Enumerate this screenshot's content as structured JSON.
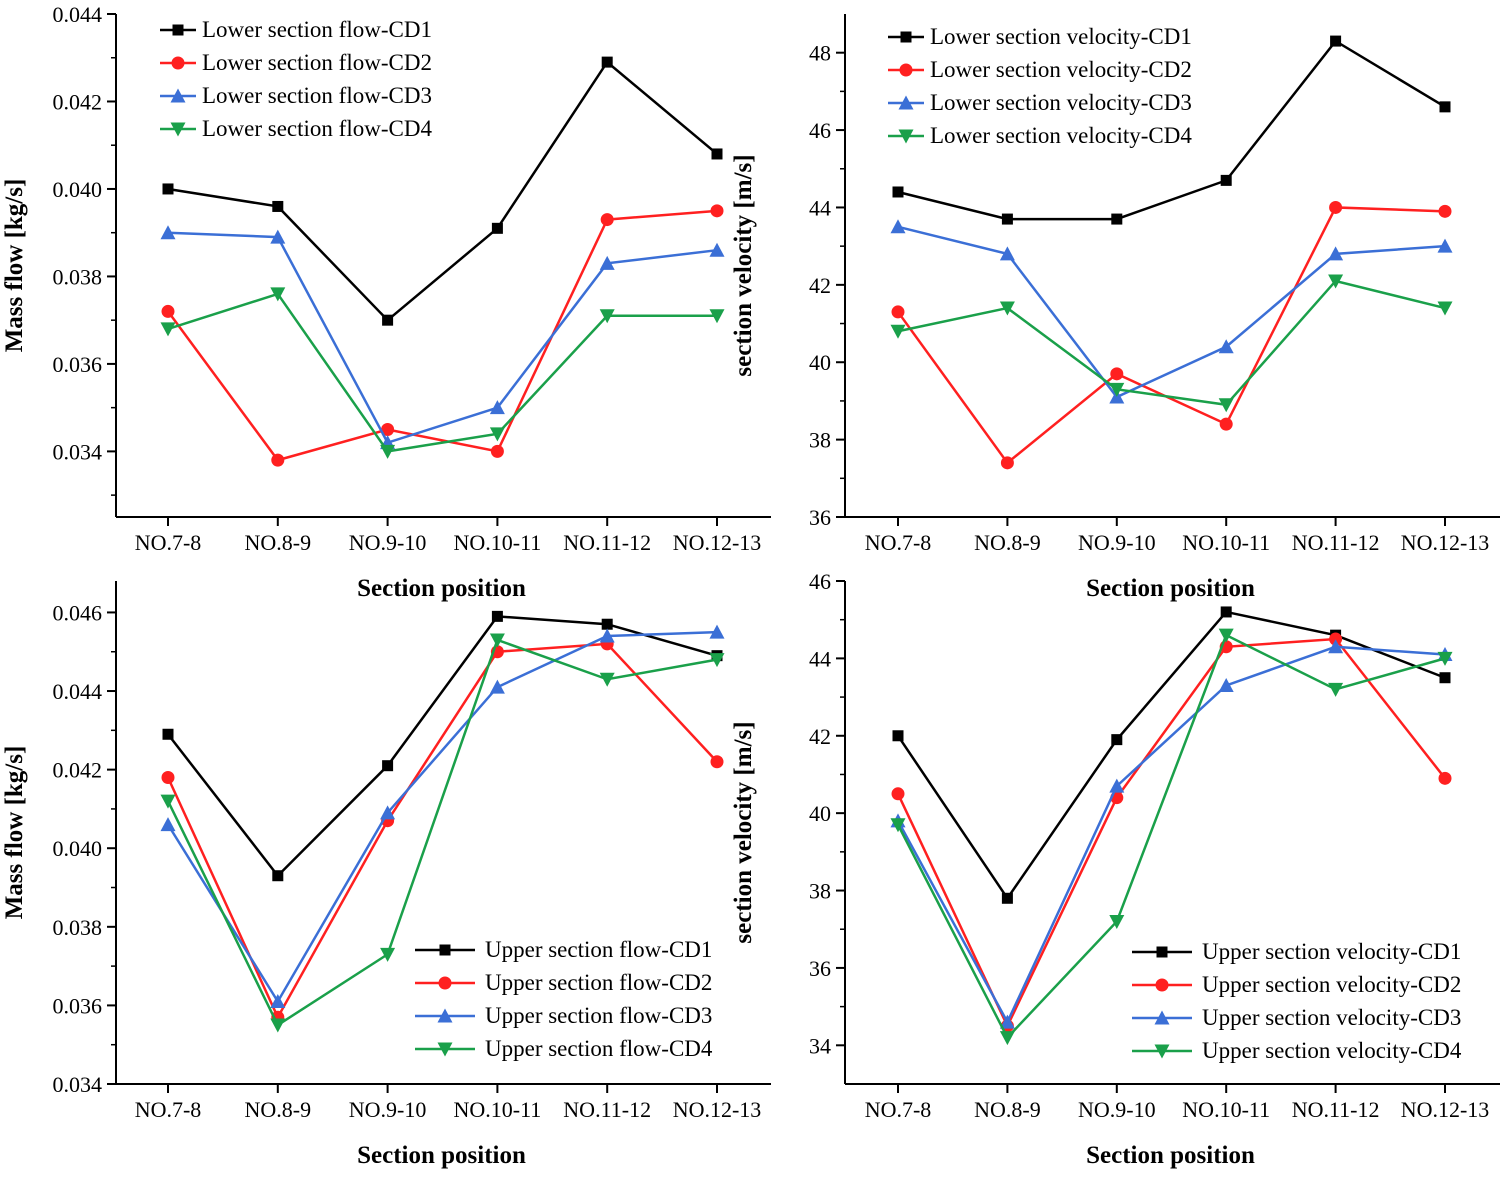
{
  "chart_data": [
    {
      "type": "line",
      "id": "lower-flow",
      "title": "",
      "xlabel": "Section position",
      "ylabel": "Mass flow [kg/s]",
      "categories": [
        "NO.7-8",
        "NO.8-9",
        "NO.9-10",
        "NO.10-11",
        "NO.11-12",
        "NO.12-13"
      ],
      "ylim": [
        0.0325,
        0.044
      ],
      "yticks": [
        0.034,
        0.036,
        0.038,
        0.04,
        0.042,
        0.044
      ],
      "ytick_labels": [
        "0.034",
        "0.036",
        "0.038",
        "0.040",
        "0.042",
        "0.044"
      ],
      "legend_position": "top-left",
      "series": [
        {
          "name": "Lower section flow-CD1",
          "color": "#000000",
          "marker": "square",
          "values": [
            0.04,
            0.0396,
            0.037,
            0.0391,
            0.0429,
            0.0408
          ]
        },
        {
          "name": "Lower section flow-CD2",
          "color": "#ff2020",
          "marker": "circle",
          "values": [
            0.0372,
            0.0338,
            0.0345,
            0.034,
            0.0393,
            0.0395
          ]
        },
        {
          "name": "Lower section flow-CD3",
          "color": "#3b6fd6",
          "marker": "triangle-up",
          "values": [
            0.039,
            0.0389,
            0.0342,
            0.035,
            0.0383,
            0.0386
          ]
        },
        {
          "name": "Lower section flow-CD4",
          "color": "#1aa04a",
          "marker": "triangle-down",
          "values": [
            0.0368,
            0.0376,
            0.034,
            0.0344,
            0.0371,
            0.0371
          ]
        }
      ]
    },
    {
      "type": "line",
      "id": "lower-velocity",
      "title": "",
      "xlabel": "Section position",
      "ylabel": "section velocity [m/s]",
      "categories": [
        "NO.7-8",
        "NO.8-9",
        "NO.9-10",
        "NO.10-11",
        "NO.11-12",
        "NO.12-13"
      ],
      "ylim": [
        36,
        49
      ],
      "yticks": [
        36,
        38,
        40,
        42,
        44,
        46,
        48
      ],
      "ytick_labels": [
        "36",
        "38",
        "40",
        "42",
        "44",
        "46",
        "48"
      ],
      "legend_position": "top-left",
      "series": [
        {
          "name": "Lower section velocity-CD1",
          "color": "#000000",
          "marker": "square",
          "values": [
            44.4,
            43.7,
            43.7,
            44.7,
            48.3,
            46.6
          ]
        },
        {
          "name": "Lower section velocity-CD2",
          "color": "#ff2020",
          "marker": "circle",
          "values": [
            41.3,
            37.4,
            39.7,
            38.4,
            44.0,
            43.9
          ]
        },
        {
          "name": "Lower section velocity-CD3",
          "color": "#3b6fd6",
          "marker": "triangle-up",
          "values": [
            43.5,
            42.8,
            39.1,
            40.4,
            42.8,
            43.0
          ]
        },
        {
          "name": "Lower section velocity-CD4",
          "color": "#1aa04a",
          "marker": "triangle-down",
          "values": [
            40.8,
            41.4,
            39.3,
            38.9,
            42.1,
            41.4
          ]
        }
      ]
    },
    {
      "type": "line",
      "id": "upper-flow",
      "title": "",
      "xlabel": "Section position",
      "ylabel": "Mass flow [kg/s]",
      "categories": [
        "NO.7-8",
        "NO.8-9",
        "NO.9-10",
        "NO.10-11",
        "NO.11-12",
        "NO.12-13"
      ],
      "ylim": [
        0.034,
        0.0468
      ],
      "yticks": [
        0.034,
        0.036,
        0.038,
        0.04,
        0.042,
        0.044,
        0.046
      ],
      "ytick_labels": [
        "0.034",
        "0.036",
        "0.038",
        "0.040",
        "0.042",
        "0.044",
        "0.046"
      ],
      "legend_position": "bottom-right",
      "series": [
        {
          "name": "Upper section flow-CD1",
          "color": "#000000",
          "marker": "square",
          "values": [
            0.0429,
            0.0393,
            0.0421,
            0.0459,
            0.0457,
            0.0449
          ]
        },
        {
          "name": "Upper section flow-CD2",
          "color": "#ff2020",
          "marker": "circle",
          "values": [
            0.0418,
            0.0357,
            0.0407,
            0.045,
            0.0452,
            0.0422
          ]
        },
        {
          "name": "Upper section flow-CD3",
          "color": "#3b6fd6",
          "marker": "triangle-up",
          "values": [
            0.0406,
            0.0361,
            0.0409,
            0.0441,
            0.0454,
            0.0455
          ]
        },
        {
          "name": "Upper section flow-CD4",
          "color": "#1aa04a",
          "marker": "triangle-down",
          "values": [
            0.0412,
            0.0355,
            0.0373,
            0.0453,
            0.0443,
            0.0448
          ]
        }
      ]
    },
    {
      "type": "line",
      "id": "upper-velocity",
      "title": "",
      "xlabel": "Section position",
      "ylabel": "section velocity [m/s]",
      "categories": [
        "NO.7-8",
        "NO.8-9",
        "NO.9-10",
        "NO.10-11",
        "NO.11-12",
        "NO.12-13"
      ],
      "ylim": [
        33,
        46
      ],
      "yticks": [
        34,
        36,
        38,
        40,
        42,
        44,
        46
      ],
      "ytick_labels": [
        "34",
        "36",
        "38",
        "40",
        "42",
        "44",
        "46"
      ],
      "legend_position": "bottom-right",
      "series": [
        {
          "name": "Upper section velocity-CD1",
          "color": "#000000",
          "marker": "square",
          "values": [
            42.0,
            37.8,
            41.9,
            45.2,
            44.6,
            43.5
          ]
        },
        {
          "name": "Upper section velocity-CD2",
          "color": "#ff2020",
          "marker": "circle",
          "values": [
            40.5,
            34.5,
            40.4,
            44.3,
            44.5,
            40.9
          ]
        },
        {
          "name": "Upper section velocity-CD3",
          "color": "#3b6fd6",
          "marker": "triangle-up",
          "values": [
            39.8,
            34.6,
            40.7,
            43.3,
            44.3,
            44.1
          ]
        },
        {
          "name": "Upper section velocity-CD4",
          "color": "#1aa04a",
          "marker": "triangle-down",
          "values": [
            39.7,
            34.2,
            37.2,
            44.6,
            43.2,
            44.0
          ]
        }
      ]
    }
  ]
}
